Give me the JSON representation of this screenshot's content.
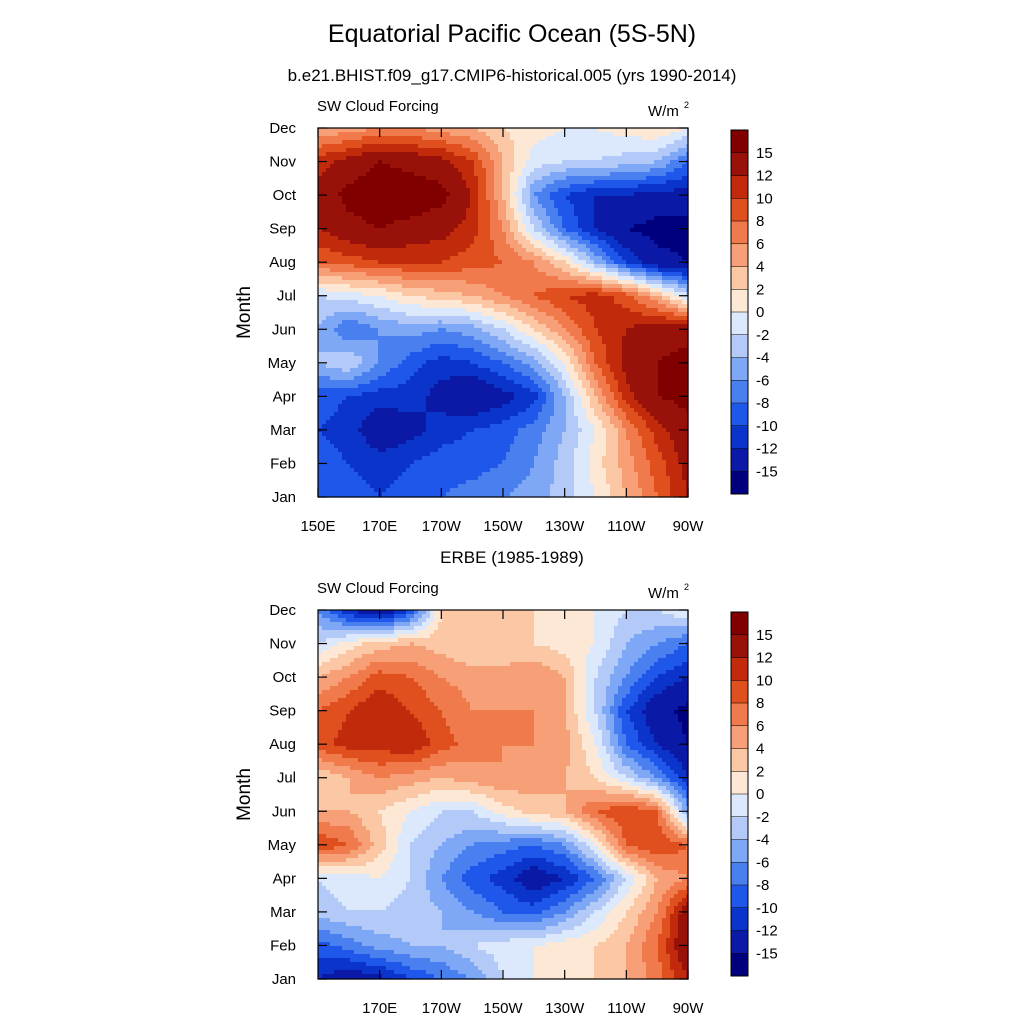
{
  "title": "Equatorial Pacific Ocean (5S-5N)",
  "colorbar": {
    "colors": [
      "#00007f",
      "#0a1aa6",
      "#0b34cb",
      "#1e57ea",
      "#4a7ff0",
      "#7ea7f5",
      "#b3c9f8",
      "#dce8fb",
      "#fde8d6",
      "#fbc7a4",
      "#f7a077",
      "#f17a4d",
      "#e0501e",
      "#c12a0a",
      "#991209",
      "#800000"
    ],
    "labels": [
      "-15",
      "-12",
      "-10",
      "-8",
      "-6",
      "-4",
      "-2",
      "0",
      "2",
      "4",
      "6",
      "8",
      "10",
      "12",
      "15"
    ]
  },
  "chart_data": [
    {
      "type": "heatmap",
      "title": "b.e21.BHIST.f09_g17.CMIP6-historical.005 (yrs 1990-2014)",
      "left_label": "SW Cloud Forcing",
      "units_label": "W/m",
      "units_sup": "2",
      "ylabel": "Month",
      "y_ticks": [
        "Jan",
        "Feb",
        "Mar",
        "Apr",
        "May",
        "Jun",
        "Jul",
        "Aug",
        "Sep",
        "Oct",
        "Nov",
        "Dec"
      ],
      "x_ticks": [
        "150E",
        "170E",
        "170W",
        "150W",
        "130W",
        "110W",
        "90W"
      ],
      "x_tick_positions": [
        150,
        170,
        190,
        210,
        230,
        250,
        270
      ],
      "x_range": [
        150,
        270
      ],
      "y_range": [
        1,
        12
      ],
      "z_levels": [
        -15,
        -12,
        -10,
        -8,
        -6,
        -4,
        -2,
        0,
        2,
        4,
        6,
        8,
        10,
        12,
        15
      ],
      "x": [
        150,
        160,
        170,
        180,
        190,
        200,
        210,
        220,
        230,
        240,
        250,
        260,
        270
      ],
      "z": [
        [
          -8,
          -9,
          -10,
          -9,
          -8,
          -7,
          -6,
          -5,
          -3,
          0,
          4,
          8,
          12
        ],
        [
          -9,
          -10,
          -11,
          -10,
          -9,
          -9,
          -8,
          -6,
          -3,
          1,
          5,
          9,
          13
        ],
        [
          -10,
          -11,
          -14,
          -13,
          -11,
          -10,
          -9,
          -7,
          -4,
          0,
          6,
          11,
          14
        ],
        [
          -9,
          -10,
          -11,
          -11,
          -13,
          -15,
          -13,
          -11,
          -4,
          4,
          11,
          15,
          16
        ],
        [
          -4,
          -2,
          -6,
          -9,
          -11,
          -10,
          -8,
          -5,
          0,
          8,
          13,
          15,
          16
        ],
        [
          -4,
          -8,
          -6,
          -5,
          -6,
          -5,
          -2,
          2,
          6,
          10,
          12,
          14,
          14
        ],
        [
          -2,
          -1,
          0,
          2,
          3,
          4,
          6,
          8,
          10,
          11,
          9,
          4,
          -2
        ],
        [
          8,
          9,
          10,
          10,
          10,
          9,
          8,
          6,
          2,
          -4,
          -10,
          -14,
          -15
        ],
        [
          12,
          14,
          15,
          14,
          13,
          11,
          6,
          -2,
          -8,
          -12,
          -15,
          -16,
          -16
        ],
        [
          13,
          16,
          17,
          17,
          16,
          12,
          4,
          -6,
          -10,
          -12,
          -12,
          -13,
          -13
        ],
        [
          11,
          13,
          15,
          14,
          13,
          10,
          4,
          -1,
          -2,
          -2,
          -3,
          -4,
          -8
        ],
        [
          4,
          5,
          6,
          6,
          5,
          4,
          2,
          1,
          0,
          0,
          1,
          2,
          0
        ]
      ]
    },
    {
      "type": "heatmap",
      "title": "ERBE (1985-1989)",
      "left_label": "SW Cloud Forcing",
      "units_label": "W/m",
      "units_sup": "2",
      "ylabel": "Month",
      "y_ticks": [
        "Jan",
        "Feb",
        "Mar",
        "Apr",
        "May",
        "Jun",
        "Jul",
        "Aug",
        "Sep",
        "Oct",
        "Nov",
        "Dec"
      ],
      "x_ticks": [
        "170E",
        "170W",
        "150W",
        "130W",
        "110W",
        "90W"
      ],
      "x_tick_positions": [
        170,
        190,
        210,
        230,
        250,
        270
      ],
      "x_range": [
        150,
        270
      ],
      "y_range": [
        1,
        12
      ],
      "z_levels": [
        -15,
        -12,
        -10,
        -8,
        -6,
        -4,
        -2,
        0,
        2,
        4,
        6,
        8,
        10,
        12,
        15
      ],
      "x": [
        150,
        160,
        170,
        180,
        190,
        200,
        210,
        220,
        230,
        240,
        250,
        260,
        270
      ],
      "z": [
        [
          -12,
          -14,
          -13,
          -10,
          -8,
          -6,
          -2,
          0,
          2,
          2,
          4,
          7,
          12
        ],
        [
          -9,
          -7,
          -5,
          -4,
          -4,
          -2,
          -1,
          0,
          1,
          2,
          4,
          8,
          15
        ],
        [
          -3,
          -2,
          -2,
          -3,
          -4,
          -6,
          -8,
          -9,
          -6,
          -2,
          2,
          6,
          14
        ],
        [
          -2,
          -1,
          0,
          -2,
          -6,
          -9,
          -11,
          -14,
          -12,
          -8,
          -2,
          4,
          6
        ],
        [
          10,
          8,
          3,
          -2,
          -4,
          -6,
          -7,
          -8,
          -6,
          0,
          8,
          10,
          8
        ],
        [
          4,
          4,
          2,
          0,
          -2,
          -2,
          1,
          3,
          4,
          8,
          10,
          8,
          -5
        ],
        [
          2,
          4,
          6,
          5,
          4,
          5,
          6,
          5,
          4,
          2,
          -2,
          -6,
          -12
        ],
        [
          9,
          11,
          11,
          12,
          9,
          7,
          6,
          6,
          5,
          0,
          -8,
          -12,
          -15
        ],
        [
          8,
          10,
          12,
          10,
          8,
          6,
          6,
          6,
          4,
          -2,
          -10,
          -14,
          -16
        ],
        [
          4,
          6,
          9,
          8,
          6,
          5,
          5,
          6,
          4,
          -2,
          -6,
          -10,
          -12
        ],
        [
          -2,
          1,
          3,
          4,
          3,
          2,
          2,
          2,
          1,
          0,
          -4,
          -6,
          -8
        ],
        [
          -6,
          -12,
          -15,
          -10,
          2,
          3,
          3,
          2,
          1,
          0,
          -2,
          -2,
          0
        ]
      ]
    }
  ]
}
